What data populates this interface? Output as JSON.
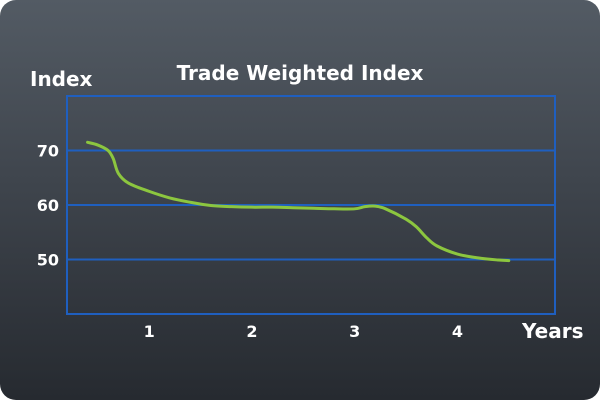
{
  "chart_data": {
    "type": "line",
    "title": "Trade Weighted Index",
    "ylabel": "Index",
    "xlabel": "Years",
    "x_ticks": [
      "1",
      "2",
      "3",
      "4"
    ],
    "y_ticks": [
      "50",
      "60",
      "70"
    ],
    "xlim": [
      0.2,
      4.95
    ],
    "ylim": [
      40,
      80
    ],
    "grid": true,
    "series": [
      {
        "color": "#8cc63f",
        "x": [
          0.4,
          0.5,
          0.6,
          0.65,
          0.7,
          0.8,
          1.0,
          1.2,
          1.4,
          1.6,
          1.8,
          2.0,
          2.2,
          2.4,
          2.6,
          2.8,
          3.0,
          3.1,
          3.2,
          3.3,
          3.5,
          3.6,
          3.7,
          3.8,
          4.0,
          4.2,
          4.4,
          4.5
        ],
        "y": [
          71.5,
          71.0,
          70.0,
          68.5,
          65.8,
          64.0,
          62.5,
          61.3,
          60.5,
          59.9,
          59.7,
          59.6,
          59.6,
          59.5,
          59.4,
          59.3,
          59.3,
          59.7,
          59.8,
          59.3,
          57.4,
          56.0,
          54.0,
          52.5,
          51.0,
          50.3,
          49.9,
          49.8
        ]
      }
    ]
  }
}
